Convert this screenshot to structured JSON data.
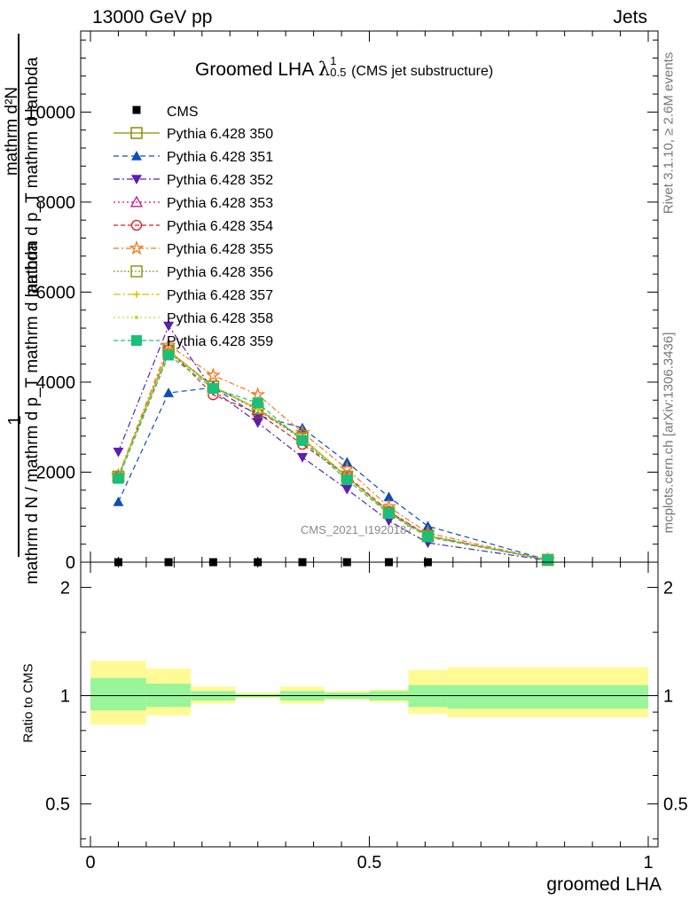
{
  "header": {
    "left": "13000 GeV pp",
    "right": "Jets"
  },
  "side_text": {
    "rivet": "Rivet 3.1.10, ≥ 2.6M events",
    "mcplots": "mcplots.cern.ch [arXiv:1306.3436]"
  },
  "main_title": {
    "text": "Groomed LHA",
    "lambda": "λ",
    "sup": "1",
    "sub": "0.5",
    "note": "(CMS jet substructure)"
  },
  "ylabel_top": "1",
  "ylabel_num": "mathrm d²N",
  "ylabel_num2": "mathrm d p_T mathrm d lambda",
  "ylabel_den": "mathrm d N / mathrm d p_T mathrm d lambda",
  "watermark": "CMS_2021_I1920187",
  "ratio_ylabel": "Ratio to CMS",
  "xlabel": "groomed LHA",
  "chart_data": [
    {
      "type": "line",
      "name": "main",
      "xlim": [
        -0.04,
        1.02
      ],
      "ylim": [
        0,
        11800
      ],
      "yticks": [
        0,
        2000,
        4000,
        6000,
        8000,
        10000
      ],
      "ytick_labels": [
        "0",
        "2000",
        "4000",
        "6000",
        "8000",
        "10000"
      ],
      "legend_position": "top-left",
      "cms": {
        "name": "CMS",
        "color": "#000000",
        "x": [
          0.05,
          0.14,
          0.22,
          0.3,
          0.38,
          0.46,
          0.535,
          0.605
        ],
        "y": [
          0,
          0,
          0,
          0,
          0,
          0,
          0,
          0
        ]
      },
      "x": [
        0.05,
        0.14,
        0.22,
        0.3,
        0.38,
        0.46,
        0.535,
        0.605,
        0.82
      ],
      "series": [
        {
          "name": "Pythia 6.428 350",
          "color": "#8b8b00",
          "marker": "square-open",
          "dash": "",
          "values": [
            1900,
            4700,
            3900,
            3400,
            2750,
            1900,
            1100,
            580,
            50
          ]
        },
        {
          "name": "Pythia 6.428 351",
          "color": "#0b4fb5",
          "marker": "triangle-up",
          "dash": "6,4",
          "values": [
            1340,
            3760,
            3880,
            3260,
            2980,
            2220,
            1450,
            800,
            50
          ]
        },
        {
          "name": "Pythia 6.428 352",
          "color": "#5a1fb0",
          "marker": "triangle-down",
          "dash": "7,3,2,3",
          "values": [
            2450,
            5250,
            3820,
            3100,
            2330,
            1620,
            920,
            430,
            40
          ]
        },
        {
          "name": "Pythia 6.428 353",
          "color": "#c2188a",
          "marker": "triangle-open",
          "dash": "2,3",
          "values": [
            1900,
            4650,
            3900,
            3380,
            2730,
            1880,
            1120,
            590,
            50
          ]
        },
        {
          "name": "Pythia 6.428 354",
          "color": "#e41a1c",
          "marker": "circle-open",
          "dash": "5,3",
          "values": [
            1900,
            4720,
            3720,
            3310,
            2620,
            1920,
            1130,
            590,
            50
          ]
        },
        {
          "name": "Pythia 6.428 355",
          "color": "#f07820",
          "marker": "star-open",
          "dash": "6,3,2,3",
          "values": [
            1920,
            4820,
            4150,
            3720,
            2880,
            2070,
            1230,
            650,
            50
          ]
        },
        {
          "name": "Pythia 6.428 356",
          "color": "#8b9a1a",
          "marker": "square-open",
          "dash": "2,2",
          "values": [
            1900,
            4700,
            3900,
            3420,
            2760,
            1900,
            1100,
            580,
            50
          ]
        },
        {
          "name": "Pythia 6.428 357",
          "color": "#d6c000",
          "marker": "cross",
          "dash": "8,3,2,3",
          "values": [
            1900,
            4680,
            3880,
            3400,
            2740,
            1890,
            1100,
            580,
            50
          ]
        },
        {
          "name": "Pythia 6.428 358",
          "color": "#b6e01a",
          "marker": "dot",
          "dash": "2,3",
          "values": [
            1900,
            4690,
            3890,
            3410,
            2750,
            1890,
            1100,
            580,
            50
          ]
        },
        {
          "name": "Pythia 6.428 359",
          "color": "#19c07a",
          "marker": "square",
          "dash": "5,3",
          "values": [
            1860,
            4600,
            3860,
            3540,
            2700,
            1830,
            1080,
            560,
            50
          ]
        }
      ]
    },
    {
      "type": "area",
      "name": "ratio",
      "xlim": [
        -0.04,
        1.02
      ],
      "ylim": [
        0.38,
        2.35
      ],
      "ylog": true,
      "yticks": [
        0.5,
        1,
        2
      ],
      "ytick_labels": [
        "0.5",
        "1",
        "2"
      ],
      "xticks": [
        0,
        0.5,
        1
      ],
      "xtick_labels": [
        "0",
        "0.5",
        "1"
      ],
      "reference": 1,
      "bins": [
        [
          0,
          0.1
        ],
        [
          0.1,
          0.18
        ],
        [
          0.18,
          0.26
        ],
        [
          0.26,
          0.34
        ],
        [
          0.34,
          0.42
        ],
        [
          0.42,
          0.5
        ],
        [
          0.5,
          0.57
        ],
        [
          0.57,
          0.64
        ],
        [
          0.64,
          1.0
        ]
      ],
      "inner_band": [
        [
          0.91,
          1.12
        ],
        [
          0.93,
          1.08
        ],
        [
          0.97,
          1.03
        ],
        [
          0.99,
          1.01
        ],
        [
          0.97,
          1.03
        ],
        [
          0.98,
          1.02
        ],
        [
          0.97,
          1.03
        ],
        [
          0.93,
          1.07
        ],
        [
          0.92,
          1.07
        ]
      ],
      "outer_band": [
        [
          0.83,
          1.25
        ],
        [
          0.88,
          1.19
        ],
        [
          0.95,
          1.06
        ],
        [
          0.985,
          1.02
        ],
        [
          0.95,
          1.06
        ],
        [
          0.975,
          1.03
        ],
        [
          0.96,
          1.04
        ],
        [
          0.89,
          1.18
        ],
        [
          0.87,
          1.2
        ]
      ],
      "inner_color": "#99f599",
      "outer_color": "#fffa96"
    }
  ]
}
